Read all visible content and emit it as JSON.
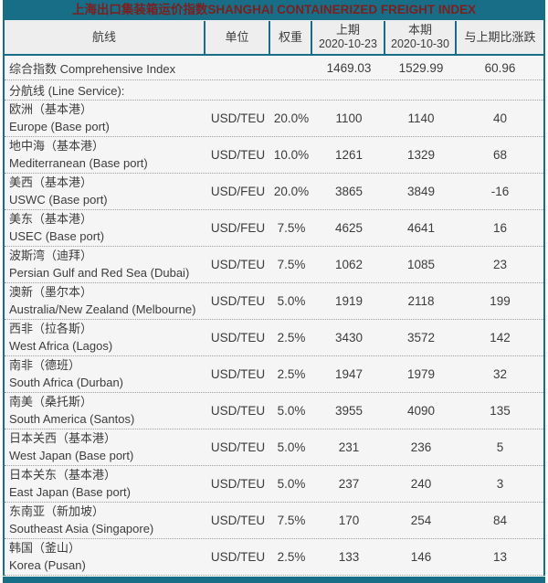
{
  "title": "上海出口集装箱运价指数SHANGHAI CONTAINERIZED FREIGHT INDEX",
  "colors": {
    "teal": "#176e86",
    "title_text": "#7c1f1f",
    "header_bg": "#eeeeee",
    "row_bg": "#f6f5f6",
    "text_dark": "#3c3c3c",
    "separator": "#9aa0a0"
  },
  "columns": [
    {
      "label": "航线"
    },
    {
      "label": "单位"
    },
    {
      "label": "权重"
    },
    {
      "label": "上期",
      "sub": "2020-10-23"
    },
    {
      "label": "本期",
      "sub": "2020-10-30"
    },
    {
      "label": "与上期比涨跌"
    }
  ],
  "summary": {
    "name": "综合指数 Comprehensive Index",
    "prev": "1469.03",
    "curr": "1529.99",
    "change": "60.96"
  },
  "section_label": "分航线 (Line Service):",
  "routes": [
    {
      "cn": "欧洲（基本港）",
      "en": "Europe (Base port)",
      "unit": "USD/TEU",
      "weight": "20.0%",
      "prev": "1100",
      "curr": "1140",
      "change": "40"
    },
    {
      "cn": "地中海（基本港）",
      "en": "Mediterranean (Base port)",
      "unit": "USD/TEU",
      "weight": "10.0%",
      "prev": "1261",
      "curr": "1329",
      "change": "68"
    },
    {
      "cn": "美西（基本港）",
      "en": "USWC (Base port)",
      "unit": "USD/FEU",
      "weight": "20.0%",
      "prev": "3865",
      "curr": "3849",
      "change": "-16"
    },
    {
      "cn": "美东（基本港）",
      "en": "USEC (Base port)",
      "unit": "USD/FEU",
      "weight": "7.5%",
      "prev": "4625",
      "curr": "4641",
      "change": "16"
    },
    {
      "cn": "波斯湾（迪拜）",
      "en": "Persian Gulf and Red Sea (Dubai)",
      "unit": "USD/TEU",
      "weight": "7.5%",
      "prev": "1062",
      "curr": "1085",
      "change": "23"
    },
    {
      "cn": "澳新（墨尔本）",
      "en": "Australia/New Zealand (Melbourne)",
      "unit": "USD/TEU",
      "weight": "5.0%",
      "prev": "1919",
      "curr": "2118",
      "change": "199"
    },
    {
      "cn": "西非（拉各斯）",
      "en": "West Africa (Lagos)",
      "unit": "USD/TEU",
      "weight": "2.5%",
      "prev": "3430",
      "curr": "3572",
      "change": "142"
    },
    {
      "cn": "南非（德班）",
      "en": "South Africa (Durban)",
      "unit": "USD/TEU",
      "weight": "2.5%",
      "prev": "1947",
      "curr": "1979",
      "change": "32"
    },
    {
      "cn": "南美（桑托斯）",
      "en": "South America (Santos)",
      "unit": "USD/TEU",
      "weight": "5.0%",
      "prev": "3955",
      "curr": "4090",
      "change": "135"
    },
    {
      "cn": "日本关西（基本港）",
      "en": "West Japan (Base port)",
      "unit": "USD/TEU",
      "weight": "5.0%",
      "prev": "231",
      "curr": "236",
      "change": "5"
    },
    {
      "cn": "日本关东（基本港）",
      "en": "East Japan (Base port)",
      "unit": "USD/TEU",
      "weight": "5.0%",
      "prev": "237",
      "curr": "240",
      "change": "3"
    },
    {
      "cn": "东南亚（新加坡）",
      "en": "Southeast Asia (Singapore)",
      "unit": "USD/TEU",
      "weight": "7.5%",
      "prev": "170",
      "curr": "254",
      "change": "84"
    },
    {
      "cn": "韩国（釜山）",
      "en": "Korea (Pusan)",
      "unit": "USD/TEU",
      "weight": "2.5%",
      "prev": "133",
      "curr": "146",
      "change": "13"
    }
  ],
  "chart_data": {
    "type": "table",
    "title": "上海出口集装箱运价指数SHANGHAI CONTAINERIZED FREIGHT INDEX",
    "columns": [
      "航线",
      "单位",
      "权重",
      "上期 2020-10-23",
      "本期 2020-10-30",
      "与上期比涨跌"
    ],
    "rows": [
      [
        "综合指数 Comprehensive Index",
        "",
        "",
        1469.03,
        1529.99,
        60.96
      ],
      [
        "分航线 (Line Service):",
        "",
        "",
        null,
        null,
        null
      ],
      [
        "欧洲（基本港）Europe (Base port)",
        "USD/TEU",
        "20.0%",
        1100,
        1140,
        40
      ],
      [
        "地中海（基本港）Mediterranean (Base port)",
        "USD/TEU",
        "10.0%",
        1261,
        1329,
        68
      ],
      [
        "美西（基本港）USWC (Base port)",
        "USD/FEU",
        "20.0%",
        3865,
        3849,
        -16
      ],
      [
        "美东（基本港）USEC (Base port)",
        "USD/FEU",
        "7.5%",
        4625,
        4641,
        16
      ],
      [
        "波斯湾（迪拜）Persian Gulf and Red Sea (Dubai)",
        "USD/TEU",
        "7.5%",
        1062,
        1085,
        23
      ],
      [
        "澳新（墨尔本）Australia/New Zealand (Melbourne)",
        "USD/TEU",
        "5.0%",
        1919,
        2118,
        199
      ],
      [
        "西非（拉各斯）West Africa (Lagos)",
        "USD/TEU",
        "2.5%",
        3430,
        3572,
        142
      ],
      [
        "南非（德班）South Africa (Durban)",
        "USD/TEU",
        "2.5%",
        1947,
        1979,
        32
      ],
      [
        "南美（桑托斯）South America (Santos)",
        "USD/TEU",
        "5.0%",
        3955,
        4090,
        135
      ],
      [
        "日本关西（基本港）West Japan (Base port)",
        "USD/TEU",
        "5.0%",
        231,
        236,
        5
      ],
      [
        "日本关东（基本港）East Japan (Base port)",
        "USD/TEU",
        "5.0%",
        237,
        240,
        3
      ],
      [
        "东南亚（新加坡）Southeast Asia (Singapore)",
        "USD/TEU",
        "7.5%",
        170,
        254,
        84
      ],
      [
        "韩国（釜山）Korea (Pusan)",
        "USD/TEU",
        "2.5%",
        133,
        146,
        13
      ]
    ]
  }
}
